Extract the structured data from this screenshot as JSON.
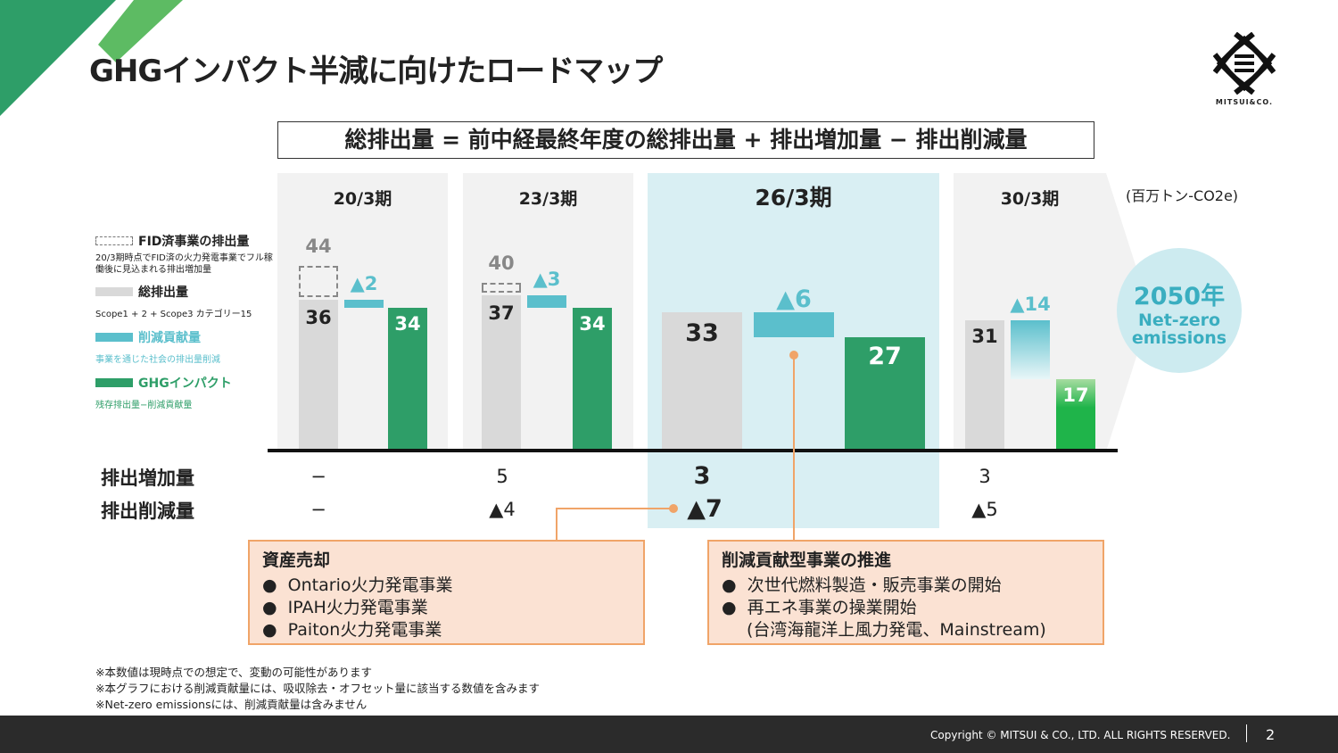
{
  "title": "GHGインパクト半減に向けたロードマップ",
  "formula": "総排出量 = 前中経最終年度の総排出量 + 排出増加量 − 排出削減量",
  "unit": "(百万トン-CO2e)",
  "logo_text": "MITSUI&CO.",
  "legend": [
    {
      "title": "FID済事業の排出量",
      "desc": "20/3期時点でFID済の火力発電事業でフル稼働後に見込まれる排出増加量"
    },
    {
      "title": "総排出量",
      "desc": "Scope1 + 2 + Scope3 カテゴリー15"
    },
    {
      "title": "削減貢献量",
      "desc": "事業を通じた社会の排出量削減"
    },
    {
      "title": "GHGインパクト",
      "desc": "残存排出量−削減貢献量"
    }
  ],
  "colors": {
    "gray": "#d9d9d9",
    "teal": "#5bbfcc",
    "green": "#2e9e68",
    "highlight": "#d9eff3",
    "orange": "#f0a468"
  },
  "chart_data": {
    "type": "bar",
    "categories": [
      "20/3期",
      "23/3期",
      "26/3期",
      "30/3期"
    ],
    "series": [
      {
        "name": "FID済事業の排出量",
        "values": [
          44,
          40,
          null,
          null
        ],
        "labels": [
          "44",
          "40",
          "",
          ""
        ]
      },
      {
        "name": "総排出量",
        "values": [
          36,
          37,
          33,
          31
        ],
        "labels": [
          "36",
          "37",
          "33",
          "31"
        ]
      },
      {
        "name": "削減貢献量",
        "values": [
          2,
          3,
          6,
          14
        ],
        "labels": [
          "▲2",
          "▲3",
          "▲6",
          "▲14"
        ]
      },
      {
        "name": "GHGインパクト",
        "values": [
          34,
          34,
          27,
          17
        ],
        "labels": [
          "34",
          "34",
          "27",
          "17"
        ]
      }
    ]
  },
  "rows": {
    "increase_label": "排出増加量",
    "reduction_label": "排出削減量",
    "increase": [
      "−",
      "5",
      "3",
      "3"
    ],
    "reduction": [
      "−",
      "▲4",
      "▲7",
      "▲5"
    ]
  },
  "goal": {
    "year": "2050年",
    "line1": "Net-zero",
    "line2": "emissions"
  },
  "box_left": {
    "title": "資産売却",
    "items": [
      "Ontario火力発電事業",
      "IPAH火力発電事業",
      "Paiton火力発電事業"
    ]
  },
  "box_right": {
    "title": "削減貢献型事業の推進",
    "items": [
      "次世代燃料製造・販売事業の開始",
      "再エネ事業の操業開始",
      "(台湾海龍洋上風力発電、Mainstream)"
    ]
  },
  "notes": [
    "※本数値は現時点での想定で、変動の可能性があります",
    "※本グラフにおける削減貢献量には、吸収除去・オフセット量に該当する数値を含みます",
    "※Net-zero emissionsには、削減貢献量は含みません"
  ],
  "footer": {
    "copyright": "Copyright © MITSUI & CO., LTD. ALL RIGHTS RESERVED.",
    "page": "2"
  }
}
